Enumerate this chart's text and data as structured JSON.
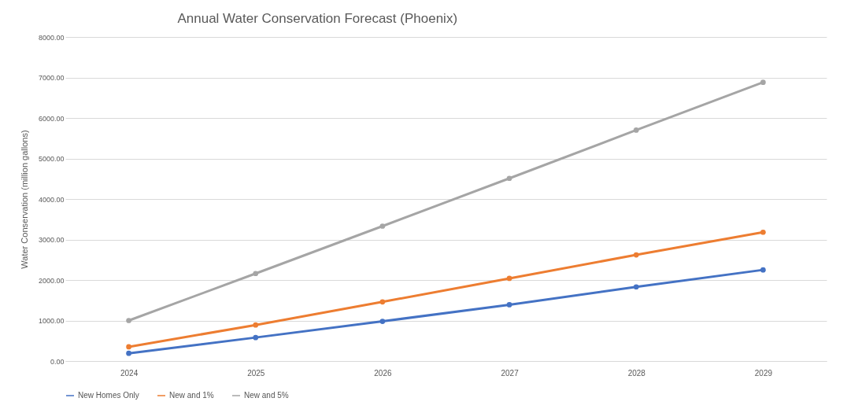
{
  "chart_data": {
    "type": "line",
    "title": "Annual Water Conservation Forecast (Phoenix)",
    "ylabel": "Water Conservation (million gallons)",
    "categories": [
      "2024",
      "2025",
      "2026",
      "2027",
      "2028",
      "2029"
    ],
    "series": [
      {
        "name": "New Homes Only",
        "color": "#4472c4",
        "values": [
          190,
          580,
          980,
          1390,
          1830,
          2250
        ]
      },
      {
        "name": "New and 1%",
        "color": "#ed7d31",
        "values": [
          350,
          890,
          1460,
          2040,
          2620,
          3180
        ]
      },
      {
        "name": "New and 5%",
        "color": "#a5a5a5",
        "values": [
          1000,
          2160,
          3330,
          4510,
          5700,
          6880
        ]
      }
    ],
    "ylim": [
      0,
      8000
    ],
    "yticks": [
      {
        "value": 0,
        "label": "0.00"
      },
      {
        "value": 1000,
        "label": "1000.00"
      },
      {
        "value": 2000,
        "label": "2000.00"
      },
      {
        "value": 3000,
        "label": "3000.00"
      },
      {
        "value": 4000,
        "label": "4000.00"
      },
      {
        "value": 5000,
        "label": "5000.00"
      },
      {
        "value": 6000,
        "label": "6000.00"
      },
      {
        "value": 7000,
        "label": "7000.00"
      },
      {
        "value": 8000,
        "label": "8000.00"
      }
    ],
    "grid": "y",
    "legend": "bottom",
    "marker": "circle",
    "line_style": "solid"
  }
}
